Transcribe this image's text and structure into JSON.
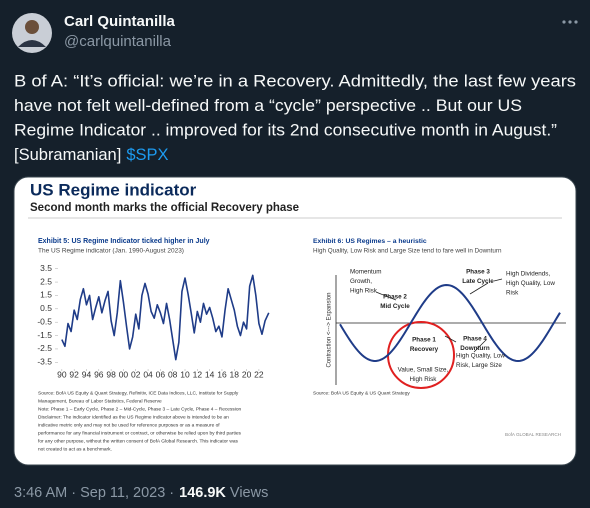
{
  "tweet": {
    "author_name": "Carl Quintanilla",
    "handle": "@carlquintanilla",
    "text_lines": [
      "B of A: “It’s official: we’re in a Recovery. Admittedly, the last few years",
      "have not felt well-defined from a “cycle” perspective .. But our US",
      "Regime Indicator .. improved for its 2nd consecutive month in August.”",
      "[Subramanian]"
    ],
    "cashtag": "$SPX",
    "timestamp": "3:46 AM · Sep 11, 2023 ·",
    "views_count": "146.9K",
    "views_label": "Views"
  },
  "image": {
    "title": "US Regime indicator",
    "subtitle": "Second month marks the official Recovery phase",
    "diagram": {
      "title": "Exhibit 6: US Regimes – a heuristic",
      "subtitle": "High Quality, Low Risk and Large Size tend to fare well in Downturn",
      "axis_label": "Contraction <---> Expansion",
      "labels": [
        {
          "lines": [
            "Momentum",
            "Growth,",
            "High Risk"
          ]
        },
        {
          "lines": [
            "Phase 2",
            "Mid Cycle"
          ]
        },
        {
          "lines": [
            "Phase 3",
            "Late Cycle"
          ]
        },
        {
          "lines": [
            "High Dividends,",
            "High Quality, Low",
            "Risk"
          ]
        },
        {
          "lines": [
            "Phase 1",
            "Recovery"
          ]
        },
        {
          "lines": [
            "Value, Small Size,",
            "High Risk"
          ]
        },
        {
          "lines": [
            "Phase 4",
            "Downturn"
          ]
        },
        {
          "lines": [
            "High Quality, Low",
            "Risk, Large Size"
          ]
        }
      ],
      "source": "Source: BofA US Equity & US Quant Strategy",
      "brand": "BofA GLOBAL RESEARCH"
    }
  },
  "chart_data": {
    "type": "line",
    "title": "Exhibit 5: US Regime Indicator ticked higher in July",
    "subtitle": "The US Regime indicator (Jan. 1990-August 2023)",
    "x": [
      1990,
      1990.5,
      1991,
      1991.5,
      1992,
      1992.5,
      1993,
      1993.5,
      1994,
      1994.5,
      1995,
      1995.5,
      1996,
      1996.5,
      1997,
      1997.5,
      1998,
      1998.5,
      1999,
      1999.5,
      2000,
      2000.5,
      2001,
      2001.5,
      2002,
      2002.5,
      2003,
      2003.5,
      2004,
      2004.5,
      2005,
      2005.5,
      2006,
      2006.5,
      2007,
      2007.5,
      2008,
      2008.5,
      2009,
      2009.5,
      2010,
      2010.5,
      2011,
      2011.5,
      2012,
      2012.5,
      2013,
      2013.5,
      2014,
      2014.5,
      2015,
      2015.5,
      2016,
      2016.5,
      2017,
      2017.5,
      2018,
      2018.5,
      2019,
      2019.5,
      2020,
      2020.5,
      2021,
      2021.5,
      2022,
      2022.5,
      2023,
      2023.6
    ],
    "series": [
      {
        "color": "#1f3c88",
        "values": [
          -1.8,
          -2.3,
          -0.6,
          -1.2,
          0.4,
          -0.3,
          1.2,
          2.0,
          0.8,
          1.5,
          -0.3,
          0.6,
          1.4,
          0.2,
          1.1,
          1.8,
          -0.4,
          -1.5,
          0.2,
          2.6,
          1.0,
          -0.8,
          -2.5,
          -1.6,
          0.1,
          -1.0,
          1.5,
          2.4,
          1.6,
          0.3,
          -0.2,
          0.8,
          0.2,
          -0.6,
          0.9,
          -0.3,
          -1.8,
          -3.3,
          -2.0,
          1.8,
          2.8,
          1.6,
          0.2,
          -1.3,
          0.3,
          -0.5,
          0.9,
          0.1,
          0.6,
          -0.2,
          -1.2,
          -0.8,
          -1.6,
          0.4,
          2.0,
          1.2,
          0.4,
          -0.8,
          -1.5,
          -0.5,
          -1.0,
          2.2,
          3.0,
          1.5,
          -0.6,
          -1.4,
          -0.4,
          0.2
        ]
      }
    ],
    "xlim": [
      1989.7,
      2023.8
    ],
    "ylim": [
      -4,
      4
    ],
    "yticks": [
      3.5,
      2.5,
      1.5,
      0.5,
      -0.5,
      -1.5,
      -2.5,
      -3.5
    ],
    "xticks": [
      {
        "value": 1990,
        "label": "90"
      },
      {
        "value": 1992,
        "label": "92"
      },
      {
        "value": 1994,
        "label": "94"
      },
      {
        "value": 1996,
        "label": "96"
      },
      {
        "value": 1998,
        "label": "98"
      },
      {
        "value": 2000,
        "label": "00"
      },
      {
        "value": 2002,
        "label": "02"
      },
      {
        "value": 2004,
        "label": "04"
      },
      {
        "value": 2006,
        "label": "06"
      },
      {
        "value": 2008,
        "label": "08"
      },
      {
        "value": 2010,
        "label": "10"
      },
      {
        "value": 2012,
        "label": "12"
      },
      {
        "value": 2014,
        "label": "14"
      },
      {
        "value": 2016,
        "label": "16"
      },
      {
        "value": 2018,
        "label": "18"
      },
      {
        "value": 2020,
        "label": "20"
      },
      {
        "value": 2022,
        "label": "22"
      }
    ],
    "source_lines": [
      "Source: BofA US Equity & Quant Strategy, Refinitiv, ICE Data Indices, LLC, Institute for Supply",
      "Management, Bureau of Labor Statistics, Federal Reserve",
      "Note: Phase 1 – Early Cycle, Phase 2 – Mid-Cycle, Phase 3 – Late Cycle, Phase 4 – Recession",
      "Disclaimer: The indicator identified as the US Regime Indicator above is intended to be an",
      "indicative metric only and may not be used for reference purposes or as a measure of",
      "performance for any financial instrument or contract, or otherwise be relied upon by third parties",
      "for any other purpose, without the written consent of BofA Global Research. This indicator was",
      "not created to act as a benchmark."
    ]
  }
}
